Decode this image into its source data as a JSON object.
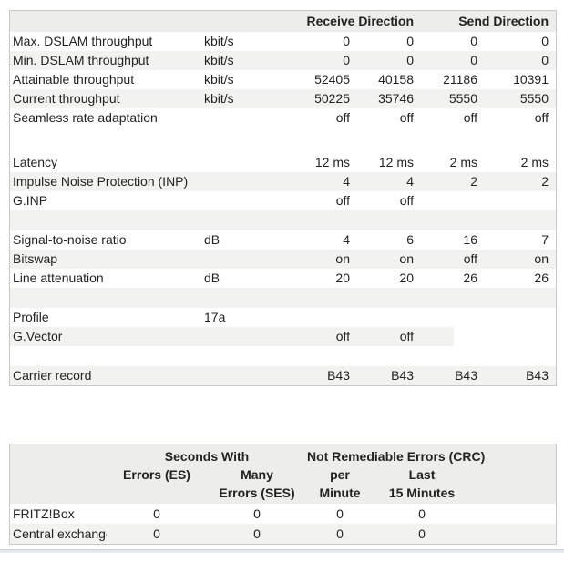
{
  "colors": {
    "zebra": "#f2f2f1",
    "header_bg": "#ededec",
    "border": "#c9c9c3",
    "text": "#222222",
    "footer_line": "#cdd2cb",
    "footer_band": "#e3ecf2"
  },
  "dsl_table": {
    "header": {
      "receive_label": "Receive Direction",
      "send_label": "Send Direction"
    },
    "rows": [
      {
        "type": "data",
        "label": "Max. DSLAM throughput",
        "unit": "kbit/s",
        "values": [
          "0",
          "0",
          "0",
          "0"
        ],
        "shaded": false
      },
      {
        "type": "data",
        "label": "Min. DSLAM throughput",
        "unit": "kbit/s",
        "values": [
          "0",
          "0",
          "0",
          "0"
        ],
        "shaded": true
      },
      {
        "type": "data",
        "label": "Attainable throughput",
        "unit": "kbit/s",
        "values": [
          "52405",
          "40158",
          "21186",
          "10391"
        ],
        "shaded": false
      },
      {
        "type": "data",
        "label": "Current throughput",
        "unit": "kbit/s",
        "values": [
          "50225",
          "35746",
          "5550",
          "5550"
        ],
        "shaded": true
      },
      {
        "type": "data",
        "label": "Seamless rate adaptation",
        "unit": "",
        "values": [
          "off",
          "off",
          "off",
          "off"
        ],
        "shaded": false
      },
      {
        "type": "spacer",
        "shaded": false,
        "tall": true
      },
      {
        "type": "data",
        "label": "Latency",
        "unit": "",
        "values": [
          "12 ms",
          "12 ms",
          "2 ms",
          "2 ms"
        ],
        "shaded": false
      },
      {
        "type": "data",
        "label": "Impulse Noise Protection (INP)",
        "unit": "",
        "values": [
          "4",
          "4",
          "2",
          "2"
        ],
        "shaded": true
      },
      {
        "type": "data",
        "label": "G.INP",
        "unit": "",
        "values": [
          "off",
          "off",
          "",
          ""
        ],
        "shaded": false
      },
      {
        "type": "spacer",
        "shaded": true,
        "tall": false
      },
      {
        "type": "data",
        "label": "Signal-to-noise ratio",
        "unit": "dB",
        "values": [
          "4",
          "6",
          "16",
          "7"
        ],
        "shaded": false
      },
      {
        "type": "data",
        "label": "Bitswap",
        "unit": "",
        "values": [
          "on",
          "on",
          "off",
          "on"
        ],
        "shaded": true
      },
      {
        "type": "data",
        "label": "Line attenuation",
        "unit": "dB",
        "values": [
          "20",
          "20",
          "26",
          "26"
        ],
        "shaded": false
      },
      {
        "type": "spacer",
        "shaded": true,
        "tall": false
      },
      {
        "type": "data",
        "label": "Profile",
        "unit": "17a",
        "values": [
          "",
          "",
          "",
          ""
        ],
        "shaded": false
      },
      {
        "type": "data",
        "label": "G.Vector",
        "unit": "",
        "values": [
          "off",
          "off",
          "",
          ""
        ],
        "shaded": true,
        "partial": true
      },
      {
        "type": "spacer",
        "shaded": false,
        "tall": false
      },
      {
        "type": "data",
        "label": "Carrier record",
        "unit": "",
        "values": [
          "B43",
          "B43",
          "B43",
          "B43"
        ],
        "shaded": true
      }
    ]
  },
  "error_table": {
    "group_headers": {
      "seconds_with": "Seconds With",
      "crc": "Not Remediable Errors (CRC)"
    },
    "column_headers": [
      "Errors (ES)",
      "Many\nErrors (SES)",
      "per\nMinute",
      "Last\n15 Minutes"
    ],
    "rows": [
      {
        "label": "FRITZ!Box",
        "values": [
          "0",
          "0",
          "0",
          "0"
        ],
        "shaded": false
      },
      {
        "label": "Central exchange",
        "values": [
          "0",
          "0",
          "0",
          "0"
        ],
        "shaded": true
      }
    ]
  }
}
